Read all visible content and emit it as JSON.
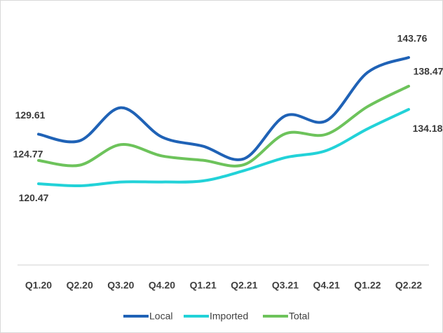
{
  "chart_data": {
    "type": "line",
    "categories": [
      "Q1.20",
      "Q2.20",
      "Q3.20",
      "Q4.20",
      "Q1.21",
      "Q2.21",
      "Q3.21",
      "Q4.21",
      "Q1.22",
      "Q2.22"
    ],
    "series": [
      {
        "name": "Local",
        "color": "#1f62b6",
        "values": [
          129.61,
          128.4,
          134.5,
          129.1,
          127.4,
          125.1,
          133.0,
          132.1,
          141.0,
          143.76
        ],
        "value_labels": [
          "129.61",
          null,
          null,
          null,
          null,
          null,
          null,
          null,
          null,
          "143.76"
        ]
      },
      {
        "name": "Imported",
        "color": "#22d2d8",
        "values": [
          120.47,
          120.1,
          120.8,
          120.8,
          121.0,
          122.9,
          125.3,
          126.6,
          130.6,
          134.18
        ],
        "value_labels": [
          "120.47",
          null,
          null,
          null,
          null,
          null,
          null,
          null,
          null,
          "134.18"
        ]
      },
      {
        "name": "Total",
        "color": "#6dc35b",
        "values": [
          124.77,
          123.9,
          127.7,
          125.6,
          124.8,
          124.0,
          129.7,
          129.6,
          134.7,
          138.47
        ],
        "value_labels": [
          "124.77",
          null,
          null,
          null,
          null,
          null,
          null,
          null,
          null,
          "138.47"
        ]
      }
    ],
    "legend": "bottom"
  }
}
